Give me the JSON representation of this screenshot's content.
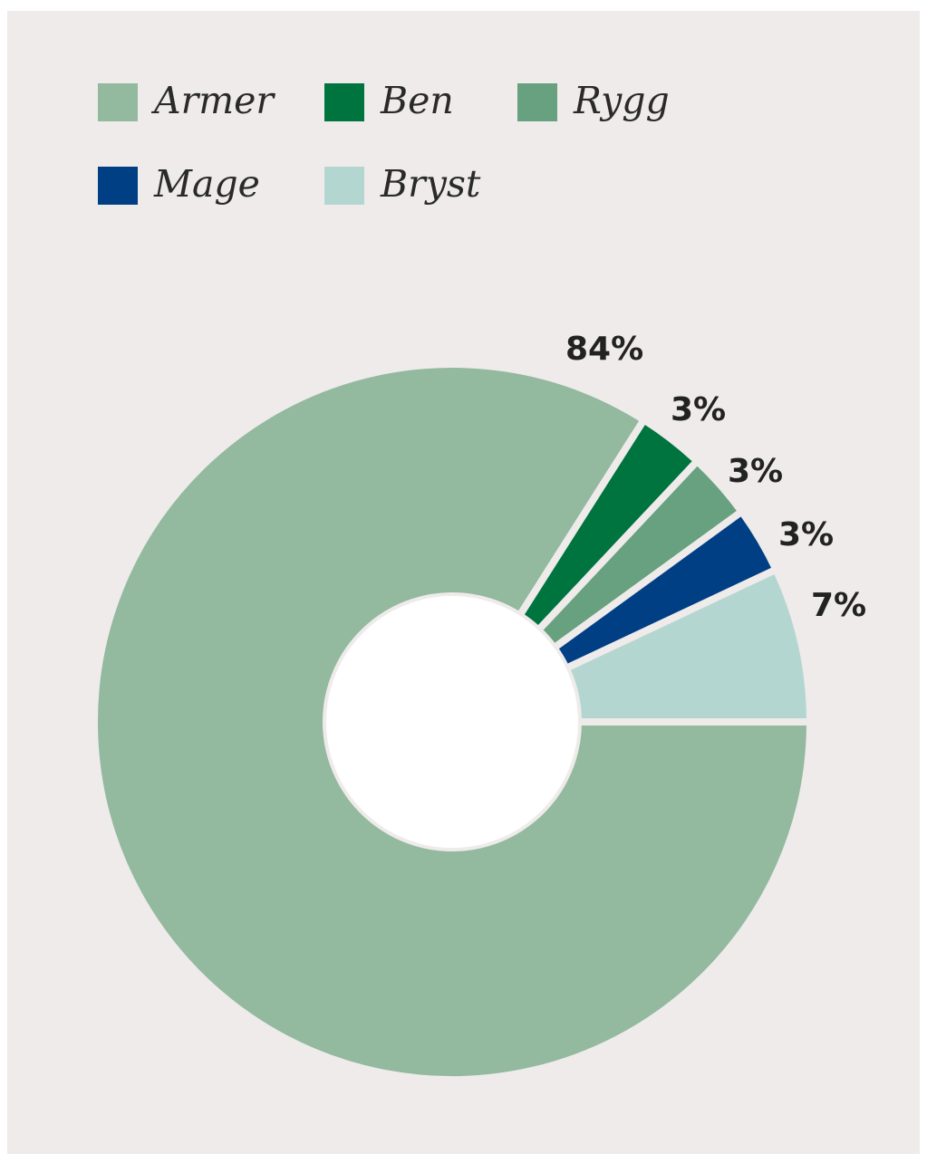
{
  "chart_data": {
    "type": "pie",
    "donut": true,
    "title": "",
    "legend_position": "top",
    "categories": [
      "Armer",
      "Ben",
      "Rygg",
      "Mage",
      "Bryst"
    ],
    "values": [
      84,
      3,
      3,
      3,
      7
    ],
    "value_labels": [
      "84%",
      "3%",
      "3%",
      "3%",
      "7%"
    ],
    "colors": [
      "#93b99f",
      "#00743f",
      "#67a17f",
      "#003f84",
      "#b4d6d1"
    ],
    "background_color": "#eeebea"
  }
}
